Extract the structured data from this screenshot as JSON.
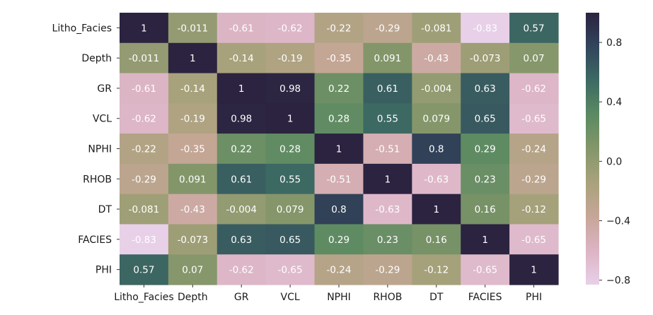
{
  "chart_data": {
    "type": "heatmap",
    "variables": [
      "Litho_Facies",
      "Depth",
      "GR",
      "VCL",
      "NPHI",
      "RHOB",
      "DT",
      "FACIES",
      "PHI"
    ],
    "matrix": [
      [
        1,
        -0.011,
        -0.61,
        -0.62,
        -0.22,
        -0.29,
        -0.081,
        -0.83,
        0.57
      ],
      [
        -0.011,
        1,
        -0.14,
        -0.19,
        -0.35,
        0.091,
        -0.43,
        -0.073,
        0.07
      ],
      [
        -0.61,
        -0.14,
        1,
        0.98,
        0.22,
        0.61,
        -0.004,
        0.63,
        -0.62
      ],
      [
        -0.62,
        -0.19,
        0.98,
        1,
        0.28,
        0.55,
        0.079,
        0.65,
        -0.65
      ],
      [
        -0.22,
        -0.35,
        0.22,
        0.28,
        1,
        -0.51,
        0.8,
        0.29,
        -0.24
      ],
      [
        -0.29,
        0.091,
        0.61,
        0.55,
        -0.51,
        1,
        -0.63,
        0.23,
        -0.29
      ],
      [
        -0.081,
        -0.43,
        -0.004,
        0.079,
        0.8,
        -0.63,
        1,
        0.16,
        -0.12
      ],
      [
        -0.83,
        -0.073,
        0.63,
        0.65,
        0.29,
        0.23,
        0.16,
        1,
        -0.65
      ],
      [
        0.57,
        0.07,
        -0.62,
        -0.65,
        -0.24,
        -0.29,
        -0.12,
        -0.65,
        1
      ]
    ],
    "colorbar": {
      "range": [
        -0.83,
        1
      ],
      "ticks": [
        0.8,
        0.4,
        0.0,
        -0.4,
        -0.8
      ],
      "tick_labels": [
        "0.8",
        "0.4",
        "0.0",
        "−0.4",
        "−0.8"
      ],
      "colormap": "cubehelix_r"
    },
    "colors": {
      "stops": [
        "#e8d0e8",
        "#dcb4c4",
        "#c7a698",
        "#a9a27c",
        "#84966a",
        "#5b8a62",
        "#3d6a63",
        "#32455c",
        "#2b2340"
      ]
    }
  }
}
